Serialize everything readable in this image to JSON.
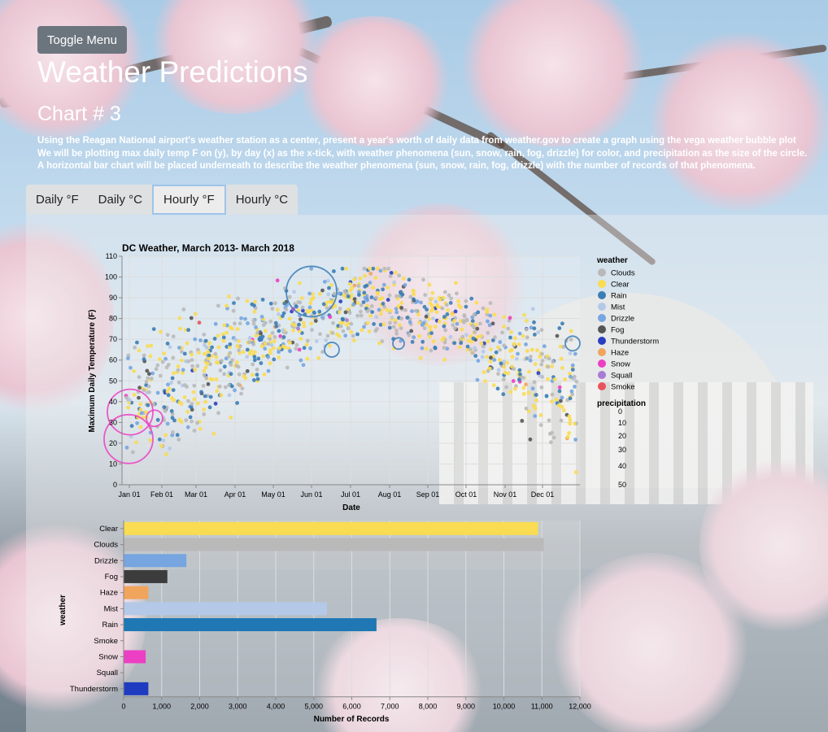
{
  "toolbar": {
    "toggle_label": "Toggle Menu"
  },
  "page": {
    "title": "Weather Predictions",
    "chart_heading": "Chart # 3",
    "description_lines": [
      "Using the Reagan National airport's weather station as a center, present a year's worth of daily data from weather.gov to create a graph using the vega weather bubble plot",
      "We will be plotting max daily temp F on (y), by day (x) as the x-tick, with weather phenomena (sun, snow, rain, fog, drizzle) for color, and precipitation as the size of the circle.",
      "A horizontal bar chart will be placed underneath to describe the weather phenomena (sun, snow, rain, fog, drizzle) with the number of records of that phenomena."
    ]
  },
  "tabs": [
    {
      "label": "Daily °F",
      "active": false
    },
    {
      "label": "Daily °C",
      "active": false
    },
    {
      "label": "Hourly °F",
      "active": true
    },
    {
      "label": "Hourly °C",
      "active": false
    }
  ],
  "chart_data": [
    {
      "type": "scatter",
      "title": "DC Weather, March 2013- March 2018",
      "xlabel": "Date",
      "ylabel": "Maximum Daily Temperature (F)",
      "xticks": [
        "Jan 01",
        "Feb 01",
        "Mar 01",
        "Apr 01",
        "May 01",
        "Jun 01",
        "Jul 01",
        "Aug 01",
        "Sep 01",
        "Oct 01",
        "Nov 01",
        "Dec 01"
      ],
      "ylim": [
        0,
        110
      ],
      "yticks": [
        0,
        10,
        20,
        30,
        40,
        50,
        60,
        70,
        80,
        90,
        100,
        110
      ],
      "grid": true,
      "color_legend": {
        "title": "weather",
        "entries": [
          {
            "name": "Clouds",
            "color": "#b9b9b9"
          },
          {
            "name": "Clear",
            "color": "#f9dc52"
          },
          {
            "name": "Rain",
            "color": "#3b7db5"
          },
          {
            "name": "Mist",
            "color": "#b4c9e8"
          },
          {
            "name": "Drizzle",
            "color": "#76a5e0"
          },
          {
            "name": "Fog",
            "color": "#555555"
          },
          {
            "name": "Thunderstorm",
            "color": "#2a3fbf"
          },
          {
            "name": "Haze",
            "color": "#f1a45c"
          },
          {
            "name": "Snow",
            "color": "#ec3fc3"
          },
          {
            "name": "Squall",
            "color": "#a67cd4"
          },
          {
            "name": "Smoke",
            "color": "#e8545d"
          }
        ]
      },
      "size_legend": {
        "title": "precipitation",
        "values": [
          0,
          10,
          20,
          30,
          40,
          50
        ]
      },
      "trend": {
        "approx_mean_max_temp_by_month": {
          "Jan": 44,
          "Feb": 47,
          "Mar": 55,
          "Apr": 66,
          "May": 76,
          "Jun": 85,
          "Jul": 89,
          "Aug": 87,
          "Sep": 81,
          "Oct": 70,
          "Nov": 58,
          "Dec": 47
        }
      }
    },
    {
      "type": "bar",
      "orientation": "horizontal",
      "xlabel": "Number of Records",
      "ylabel": "weather",
      "xlim": [
        0,
        12000
      ],
      "xticks": [
        "0",
        "1,000",
        "2,000",
        "3,000",
        "4,000",
        "5,000",
        "6,000",
        "7,000",
        "8,000",
        "9,000",
        "10,000",
        "11,000",
        "12,000"
      ],
      "categories": [
        "Clear",
        "Clouds",
        "Drizzle",
        "Fog",
        "Haze",
        "Mist",
        "Rain",
        "Smoke",
        "Snow",
        "Squall",
        "Thunderstorm"
      ],
      "values": [
        10900,
        11050,
        1650,
        1150,
        650,
        5350,
        6650,
        0,
        580,
        0,
        650
      ],
      "colors": [
        "#f9dc52",
        "#b9b9b9",
        "#76a5e0",
        "#3c3c3c",
        "#f1a45c",
        "#b4c9e8",
        "#1f77b4",
        "#e8545d",
        "#ec3fc3",
        "#a67cd4",
        "#1f3bbf"
      ]
    }
  ]
}
